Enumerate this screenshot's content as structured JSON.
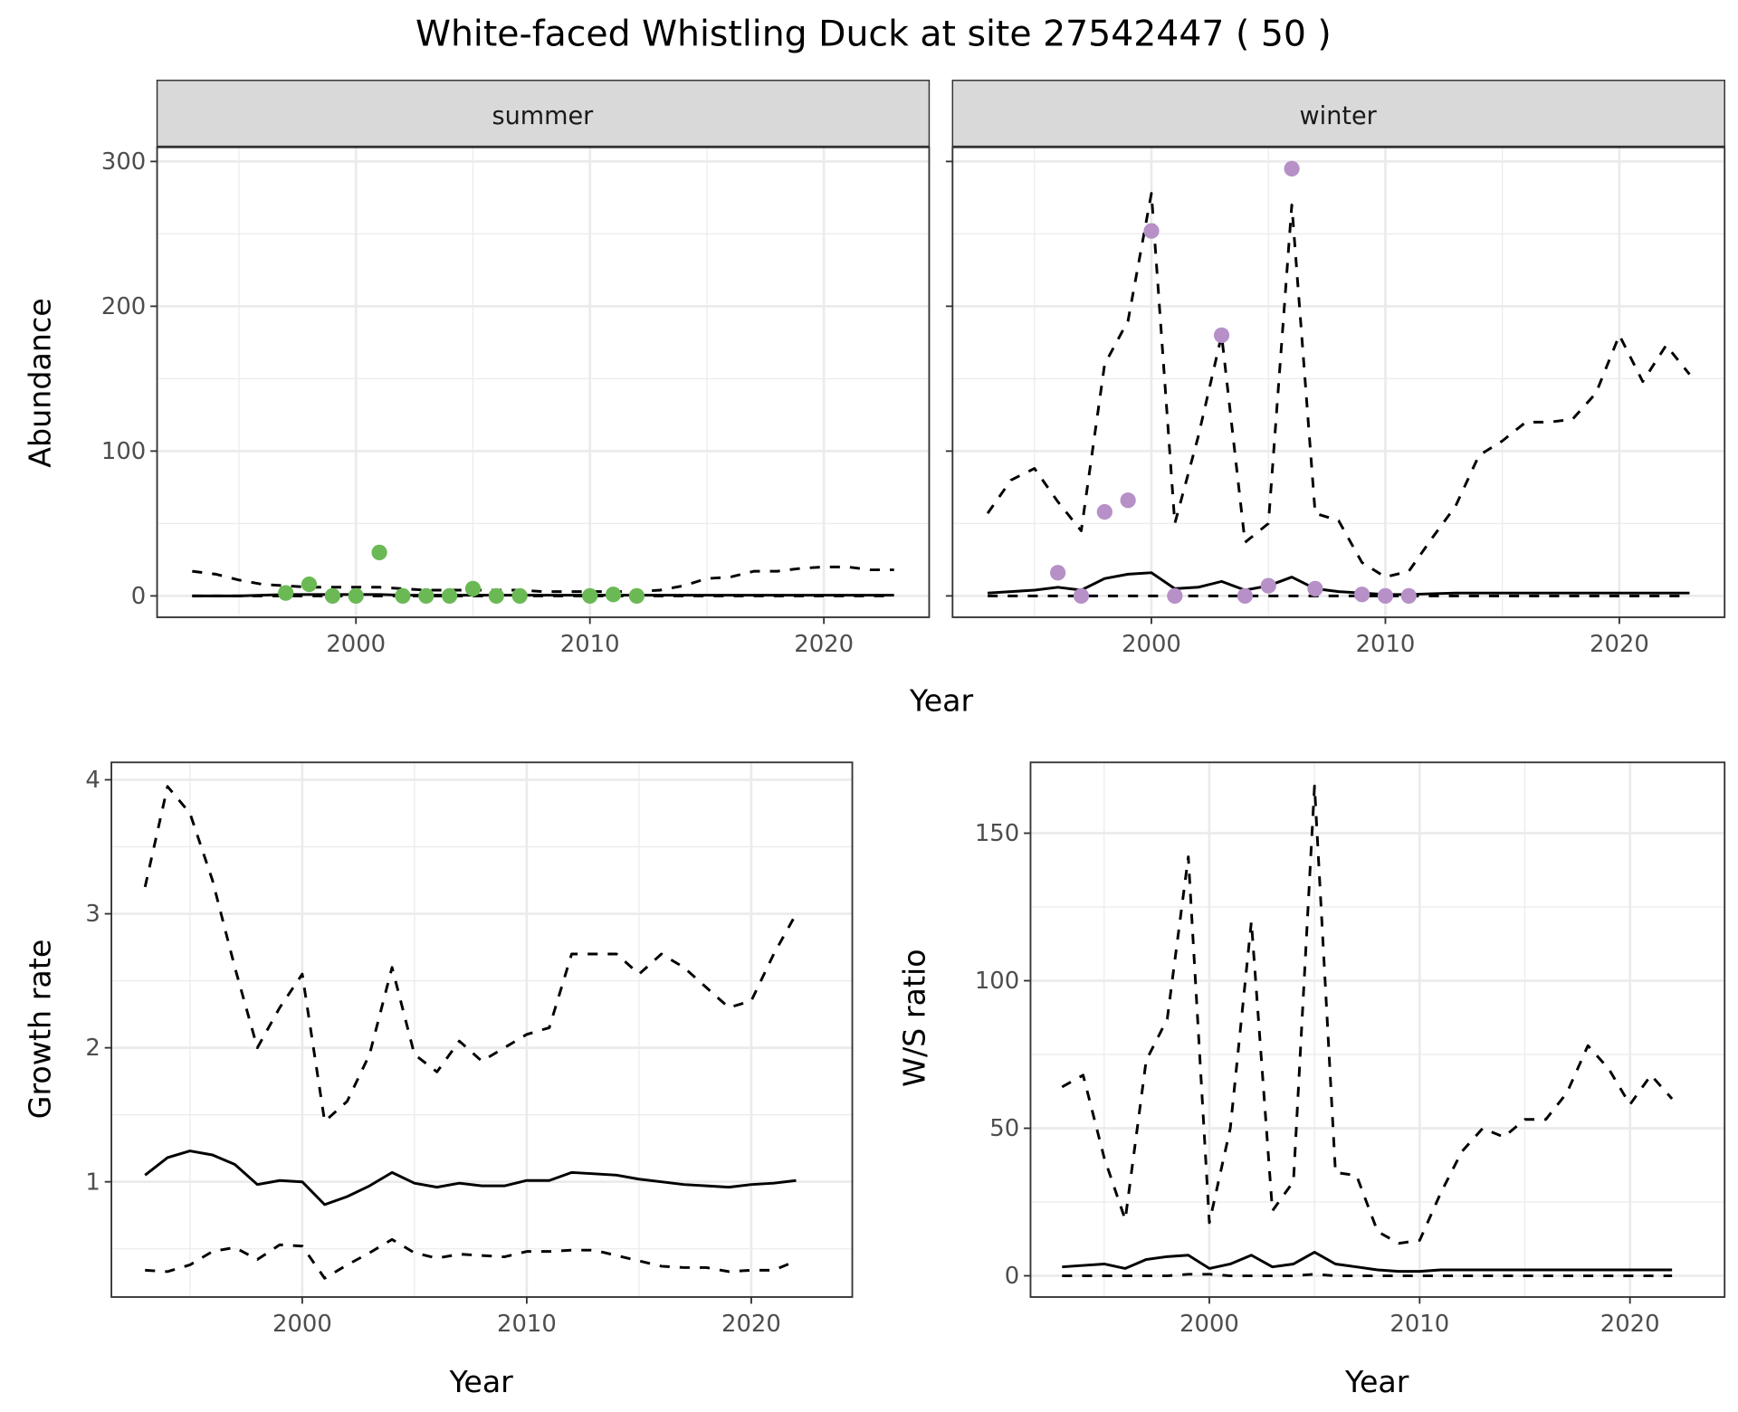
{
  "title": "White-faced Whistling Duck at site 27542447 ( 50 )",
  "colors": {
    "summer_points": "#6ab955",
    "winter_points": "#b690c7",
    "lines": "#000000",
    "grid": "#ebebeb",
    "strip": "#d9d9d9"
  },
  "chart_data": [
    {
      "type": "line",
      "facet": "summer",
      "xlabel": "Year",
      "ylabel": "Abundance",
      "xlim": [
        1991.5,
        2024.5
      ],
      "ylim": [
        -14.75,
        309.75
      ],
      "xticks": [
        2000,
        2010,
        2020
      ],
      "yticks": [
        0,
        100,
        200,
        300
      ],
      "grid": true,
      "x": [
        1993,
        1994,
        1995,
        1996,
        1997,
        1998,
        1999,
        2000,
        2001,
        2002,
        2003,
        2004,
        2005,
        2006,
        2007,
        2008,
        2009,
        2010,
        2011,
        2012,
        2013,
        2014,
        2015,
        2016,
        2017,
        2018,
        2019,
        2020,
        2021,
        2022,
        2023
      ],
      "lines": [
        {
          "style": "dashed",
          "values": [
            17,
            15,
            11,
            8,
            7,
            6,
            6,
            6,
            6,
            5,
            4,
            4,
            4,
            4,
            4,
            3,
            3,
            3,
            3,
            3,
            4,
            7,
            12,
            13,
            17,
            17,
            19,
            20,
            20,
            18,
            18
          ]
        },
        {
          "style": "solid",
          "values": [
            0,
            0,
            0,
            0.5,
            1,
            1,
            1,
            1,
            1,
            0.5,
            0.5,
            0.5,
            0.5,
            0.5,
            0.5,
            0.5,
            0.5,
            0.5,
            0.5,
            0.5,
            0.5,
            0.5,
            0.5,
            0.5,
            0.5,
            0.5,
            0.5,
            0.5,
            0.5,
            0.5,
            0.5
          ]
        },
        {
          "style": "dashed",
          "values": [
            0,
            0,
            0,
            0,
            0,
            0,
            0,
            0,
            0,
            0,
            0,
            0,
            0,
            0,
            0,
            0,
            0,
            0,
            0,
            0,
            0,
            0,
            0,
            0,
            0,
            0,
            0,
            0,
            0,
            0,
            0
          ]
        }
      ],
      "points": {
        "color": "#6ab955",
        "x": [
          1997,
          1998,
          1999,
          2000,
          2001,
          2002,
          2003,
          2004,
          2005,
          2006,
          2007,
          2010,
          2011,
          2012
        ],
        "y": [
          2,
          8,
          0,
          0,
          30,
          0,
          0,
          0,
          5,
          0,
          0,
          0,
          1,
          0
        ]
      }
    },
    {
      "type": "line",
      "facet": "winter",
      "xlabel": "Year",
      "ylabel": "Abundance",
      "xlim": [
        1991.5,
        2024.5
      ],
      "ylim": [
        -14.75,
        309.75
      ],
      "xticks": [
        2000,
        2010,
        2020
      ],
      "yticks": [
        0,
        100,
        200,
        300
      ],
      "grid": true,
      "x": [
        1993,
        1994,
        1995,
        1996,
        1997,
        1998,
        1999,
        2000,
        2001,
        2002,
        2003,
        2004,
        2005,
        2006,
        2007,
        2008,
        2009,
        2010,
        2011,
        2012,
        2013,
        2014,
        2015,
        2016,
        2017,
        2018,
        2019,
        2020,
        2021,
        2022,
        2023
      ],
      "lines": [
        {
          "style": "dashed",
          "values": [
            57,
            80,
            88,
            65,
            45,
            160,
            190,
            278,
            50,
            110,
            180,
            37,
            50,
            270,
            57,
            52,
            23,
            13,
            17,
            40,
            62,
            97,
            107,
            120,
            120,
            122,
            140,
            180,
            148,
            173,
            153
          ]
        },
        {
          "style": "solid",
          "values": [
            2,
            3,
            4,
            6,
            4,
            12,
            15,
            16,
            5,
            6,
            10,
            4,
            7,
            13,
            5,
            3,
            2,
            1,
            1,
            1.5,
            2,
            2,
            2,
            2,
            2,
            2,
            2,
            2,
            2,
            2,
            2
          ]
        },
        {
          "style": "dashed",
          "values": [
            0,
            0,
            0,
            0,
            0,
            0,
            0,
            0,
            0,
            0,
            0,
            0,
            0,
            0,
            0,
            0,
            0,
            0,
            0,
            0,
            0,
            0,
            0,
            0,
            0,
            0,
            0,
            0,
            0,
            0,
            0
          ]
        }
      ],
      "points": {
        "color": "#b690c7",
        "x": [
          1996,
          1997,
          1998,
          1999,
          2000,
          2001,
          2003,
          2004,
          2005,
          2006,
          2007,
          2009,
          2010,
          2011
        ],
        "y": [
          16,
          0,
          58,
          66,
          252,
          0,
          180,
          0,
          7,
          295,
          5,
          1,
          0,
          0
        ]
      }
    },
    {
      "type": "line",
      "xlabel": "Year",
      "ylabel": "Growth rate",
      "xlim": [
        1991.5,
        2024.5
      ],
      "ylim": [
        0.14,
        4.13
      ],
      "xticks": [
        2000,
        2010,
        2020
      ],
      "yticks": [
        1,
        2,
        3,
        4
      ],
      "grid": true,
      "x": [
        1993,
        1994,
        1995,
        1996,
        1997,
        1998,
        1999,
        2000,
        2001,
        2002,
        2003,
        2004,
        2005,
        2006,
        2007,
        2008,
        2009,
        2010,
        2011,
        2012,
        2013,
        2014,
        2015,
        2016,
        2017,
        2018,
        2019,
        2020,
        2021,
        2022
      ],
      "lines": [
        {
          "style": "dashed",
          "values": [
            3.2,
            3.95,
            3.75,
            3.25,
            2.6,
            2.0,
            2.3,
            2.55,
            1.45,
            1.6,
            1.95,
            2.6,
            1.95,
            1.82,
            2.05,
            1.9,
            2.0,
            2.1,
            2.15,
            2.7,
            2.7,
            2.7,
            2.55,
            2.7,
            2.6,
            2.45,
            2.3,
            2.35,
            2.7,
            3.0
          ]
        },
        {
          "style": "solid",
          "values": [
            1.05,
            1.18,
            1.23,
            1.2,
            1.13,
            0.98,
            1.01,
            1.0,
            0.83,
            0.89,
            0.97,
            1.07,
            0.99,
            0.96,
            0.99,
            0.97,
            0.97,
            1.01,
            1.01,
            1.07,
            1.06,
            1.05,
            1.02,
            1.0,
            0.98,
            0.97,
            0.96,
            0.98,
            0.99,
            1.01
          ]
        },
        {
          "style": "dashed",
          "values": [
            0.34,
            0.33,
            0.38,
            0.48,
            0.51,
            0.42,
            0.53,
            0.52,
            0.28,
            0.38,
            0.47,
            0.57,
            0.47,
            0.43,
            0.46,
            0.45,
            0.44,
            0.48,
            0.48,
            0.49,
            0.49,
            0.45,
            0.41,
            0.37,
            0.36,
            0.36,
            0.33,
            0.34,
            0.34,
            0.41
          ]
        }
      ]
    },
    {
      "type": "line",
      "xlabel": "Year",
      "ylabel": "W/S ratio",
      "xlim": [
        1991.5,
        2024.5
      ],
      "ylim": [
        -7.2,
        174
      ],
      "xticks": [
        2000,
        2010,
        2020
      ],
      "yticks": [
        0,
        50,
        100,
        150
      ],
      "grid": true,
      "x": [
        1993,
        1994,
        1995,
        1996,
        1997,
        1998,
        1999,
        2000,
        2001,
        2002,
        2003,
        2004,
        2005,
        2006,
        2007,
        2008,
        2009,
        2010,
        2011,
        2012,
        2013,
        2014,
        2015,
        2016,
        2017,
        2018,
        2019,
        2020,
        2021,
        2022
      ],
      "lines": [
        {
          "style": "dashed",
          "values": [
            64,
            68,
            40,
            19,
            73,
            87,
            142,
            18,
            50,
            120,
            22,
            32,
            166,
            35,
            34,
            15,
            11,
            12,
            28,
            42,
            50,
            47,
            53,
            53,
            62,
            78,
            70,
            58,
            68,
            60
          ]
        },
        {
          "style": "solid",
          "values": [
            3,
            3.5,
            4,
            2.5,
            5.5,
            6.5,
            7,
            2.5,
            4,
            7,
            3,
            4,
            8,
            4,
            3,
            2,
            1.5,
            1.5,
            2,
            2,
            2,
            2,
            2,
            2,
            2,
            2,
            2,
            2,
            2,
            2
          ]
        },
        {
          "style": "dashed",
          "values": [
            0,
            0,
            0,
            0,
            0,
            0,
            0.5,
            0.5,
            0,
            0,
            0,
            0,
            0.5,
            0,
            0,
            0,
            0,
            0,
            0,
            0,
            0,
            0,
            0,
            0,
            0,
            0,
            0,
            0,
            0,
            0
          ]
        }
      ]
    }
  ]
}
